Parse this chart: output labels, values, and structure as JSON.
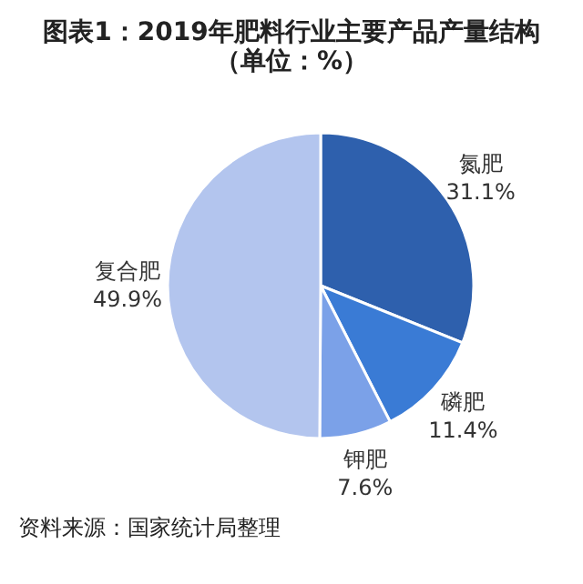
{
  "chart_data": {
    "type": "pie",
    "title": "图表1：2019年肥料行业主要产品产量结构（单位：%）",
    "categories": [
      "氮肥",
      "磷肥",
      "钾肥",
      "复合肥"
    ],
    "values": [
      31.1,
      11.4,
      7.6,
      49.9
    ],
    "value_labels": [
      "31.1%",
      "11.4%",
      "7.6%",
      "49.9%"
    ],
    "colors": [
      "#2e60ad",
      "#3a7bd5",
      "#7ba1e8",
      "#b3c5ee"
    ],
    "annotations": [
      "资料来源：国家统计局整理"
    ],
    "legend": false
  }
}
